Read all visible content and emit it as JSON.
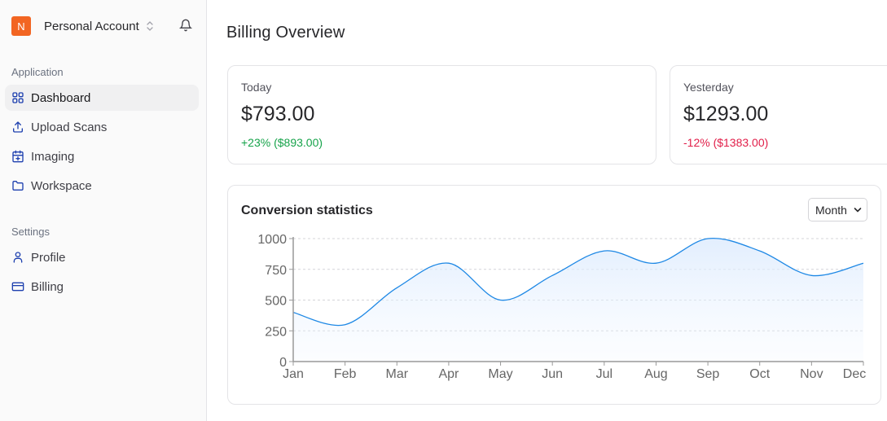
{
  "account": {
    "initial": "N",
    "name": "Personal Account",
    "logo_color": "#f26522"
  },
  "sidebar": {
    "sections": [
      {
        "label": "Application",
        "items": [
          {
            "label": "Dashboard",
            "icon": "grid-icon",
            "active": true
          },
          {
            "label": "Upload Scans",
            "icon": "upload-icon"
          },
          {
            "label": "Imaging",
            "icon": "calendar-plus-icon"
          },
          {
            "label": "Workspace",
            "icon": "folder-icon"
          }
        ]
      },
      {
        "label": "Settings",
        "items": [
          {
            "label": "Profile",
            "icon": "user-icon"
          },
          {
            "label": "Billing",
            "icon": "credit-card-icon"
          }
        ]
      }
    ]
  },
  "page": {
    "title": "Billing Overview"
  },
  "stats": [
    {
      "label": "Today",
      "value": "$793.00",
      "change": "+23% ($893.00)",
      "color": "#16a34a"
    },
    {
      "label": "Yesterday",
      "value": "$1293.00",
      "change": "-12% ($1383.00)",
      "color": "#e11d48"
    }
  ],
  "chart_card": {
    "title": "Conversion statistics",
    "period": "Month"
  },
  "chart_data": {
    "type": "area",
    "categories": [
      "Jan",
      "Feb",
      "Mar",
      "Apr",
      "May",
      "Jun",
      "Jul",
      "Aug",
      "Sep",
      "Oct",
      "Nov",
      "Dec"
    ],
    "values": [
      400,
      300,
      600,
      800,
      500,
      700,
      900,
      800,
      1000,
      900,
      700,
      800
    ],
    "ylim": [
      0,
      1000
    ],
    "yticks": [
      0,
      250,
      500,
      750,
      1000
    ],
    "grid": true,
    "line_color": "#1e88e5",
    "curve": "smooth"
  }
}
